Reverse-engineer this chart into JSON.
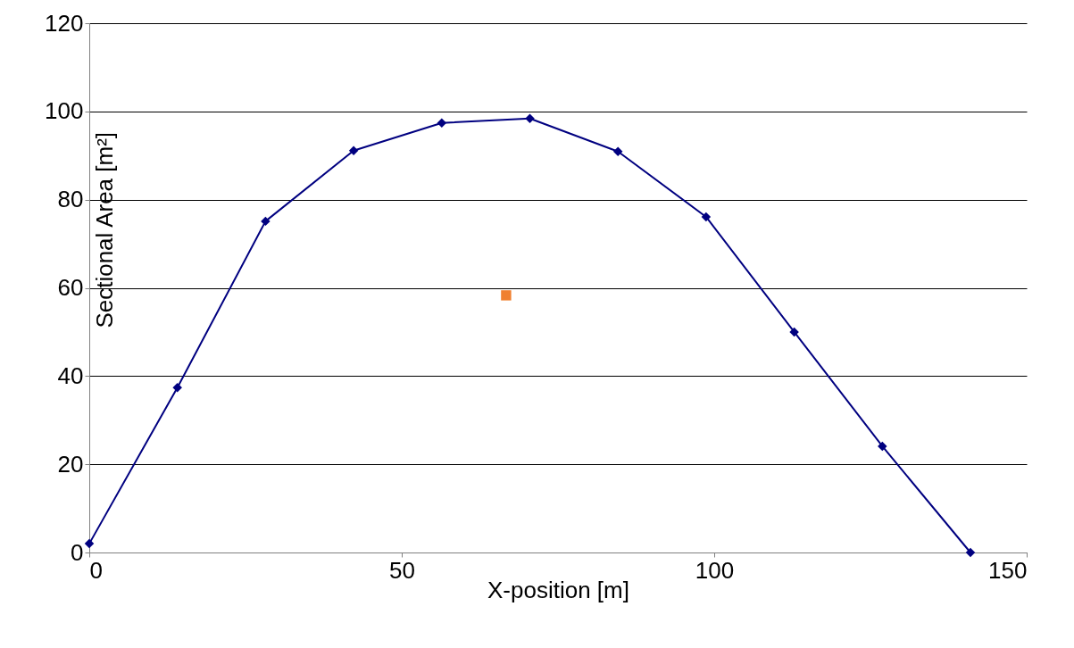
{
  "chart_data": {
    "type": "line",
    "xlabel": "X-position [m]",
    "ylabel": "Sectional Area  [m²]",
    "xlim": [
      0,
      150
    ],
    "xticks": [
      0,
      50,
      100,
      150
    ],
    "ylim": [
      0,
      120
    ],
    "yticks": [
      0,
      20,
      40,
      60,
      80,
      100,
      120
    ],
    "grid": "y",
    "series": [
      {
        "marker": "diamond",
        "color": "#000080",
        "x": [
          0,
          14.1,
          28.2,
          42.3,
          56.4,
          70.5,
          84.6,
          98.7,
          112.8,
          126.9,
          141
        ],
        "values": [
          2,
          37.4,
          75.1,
          91.1,
          97.4,
          98.4,
          90.9,
          76.1,
          50,
          24.1,
          0
        ]
      },
      {
        "type": "scatter",
        "marker": "square",
        "color": "#f08030",
        "x": [
          66.7
        ],
        "values": [
          58.3
        ]
      }
    ]
  }
}
